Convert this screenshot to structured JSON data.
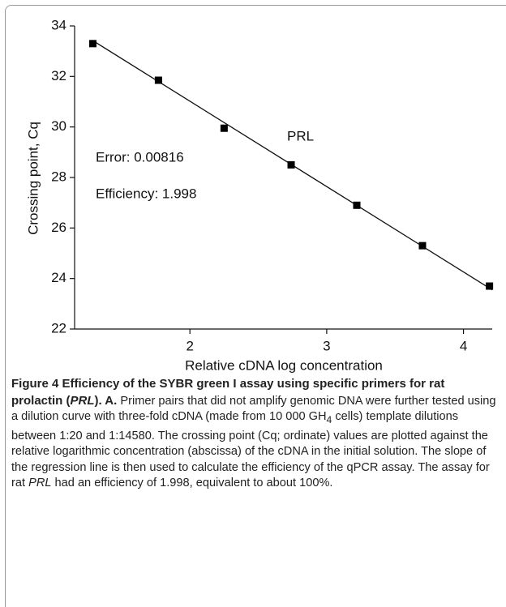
{
  "chart_data": {
    "type": "scatter",
    "x_label": "Relative cDNA log concentration",
    "y_label": "Crossing point, Cq",
    "annotations": [
      "PRL",
      "Error: 0.00816",
      "Efficiency: 1.998"
    ],
    "x": [
      1.29,
      1.77,
      2.25,
      2.74,
      3.22,
      3.7,
      4.19
    ],
    "values": [
      33.3,
      31.85,
      29.95,
      28.5,
      26.9,
      25.3,
      23.7
    ],
    "color": "#000000",
    "trendline": {
      "x": [
        1.29,
        4.21
      ],
      "y": [
        33.42,
        23.55
      ]
    },
    "xlim": [
      1.157,
      4.21
    ],
    "xticks": [
      2,
      3,
      4
    ],
    "ylim": [
      22,
      34
    ],
    "yticks": [
      22,
      24,
      26,
      28,
      30,
      32,
      34
    ]
  },
  "caption": {
    "bold": [
      "Figure 4 Efficiency of the SYBR green I assay using specific primers for rat prolactin (",
      "PRL",
      "). ",
      "A",
      "."
    ],
    "text": [
      " Primer pairs that did not amplify genomic DNA were further tested using a dilution curve with three-fold cDNA (made from 10 000 GH",
      "4",
      " cells) template dilutions between 1:20 and 1:14580. The crossing point (Cq; ordinate) values are plotted against the relative logarithmic concentration (abscissa) of the cDNA in the initial solution. The slope of the regression line is then used to calculate the efficiency of the qPCR assay. The assay for rat ",
      "PRL",
      " had an efficiency of 1.998, equivalent to about 100%."
    ]
  }
}
